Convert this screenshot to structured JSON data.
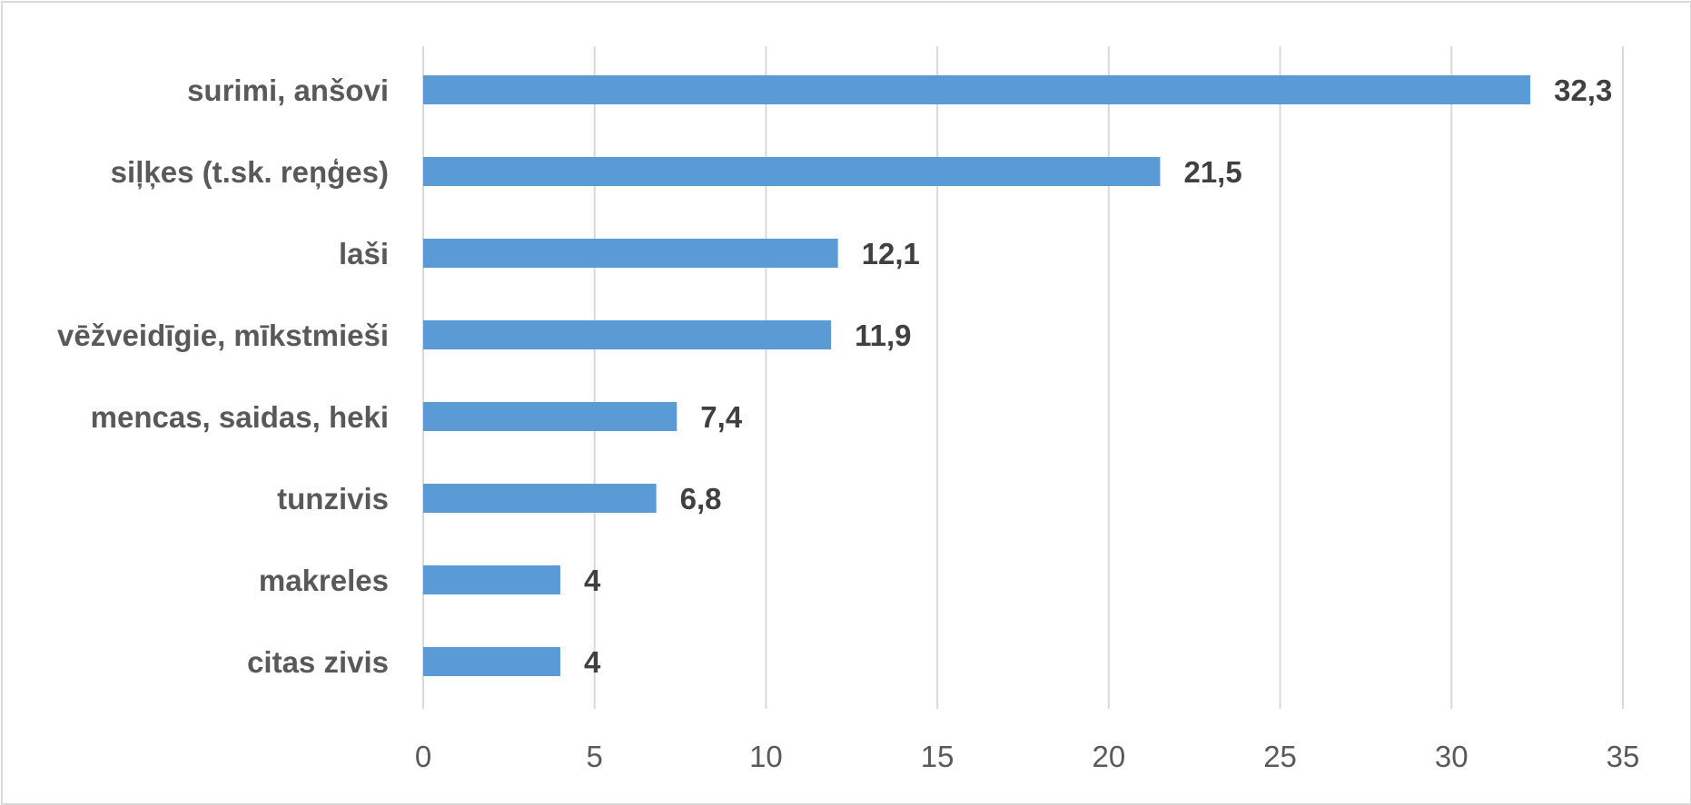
{
  "chart_data": {
    "type": "bar",
    "orientation": "horizontal",
    "categories": [
      "surimi, anšovi",
      "siļķes (t.sk. reņģes)",
      "laši",
      "vēžveidīgie, mīkstmieši",
      "mencas, saidas, heki",
      "tunzivis",
      "makreles",
      "citas zivis"
    ],
    "values": [
      32.3,
      21.5,
      12.1,
      11.9,
      7.4,
      6.8,
      4,
      4
    ],
    "value_labels": [
      "32,3",
      "21,5",
      "12,1",
      "11,9",
      "7,4",
      "6,8",
      "4",
      "4"
    ],
    "xlim": [
      0,
      35
    ],
    "xticks": [
      0,
      5,
      10,
      15,
      20,
      25,
      30,
      35
    ],
    "title": "",
    "xlabel": "",
    "ylabel": "",
    "grid": "vertical",
    "legend": "none",
    "colors": {
      "bar": "#5b9bd5",
      "grid": "#d9d9d9",
      "label": "#595959",
      "data_label": "#404040",
      "border": "#d9d9d9"
    }
  }
}
